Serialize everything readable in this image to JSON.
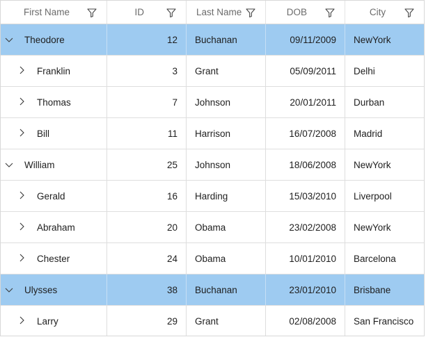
{
  "columns": {
    "first_name": "First Name",
    "id": "ID",
    "last_name": "Last Name",
    "dob": "DOB",
    "city": "City"
  },
  "rows": [
    {
      "first_name": "Theodore",
      "id": "12",
      "last_name": "Buchanan",
      "dob": "09/11/2009",
      "city": "NewYork",
      "level": 0,
      "expanded": true,
      "selected": true
    },
    {
      "first_name": "Franklin",
      "id": "3",
      "last_name": "Grant",
      "dob": "05/09/2011",
      "city": "Delhi",
      "level": 1,
      "expanded": false,
      "selected": false
    },
    {
      "first_name": "Thomas",
      "id": "7",
      "last_name": "Johnson",
      "dob": "20/01/2011",
      "city": "Durban",
      "level": 1,
      "expanded": false,
      "selected": false
    },
    {
      "first_name": "Bill",
      "id": "11",
      "last_name": "Harrison",
      "dob": "16/07/2008",
      "city": "Madrid",
      "level": 1,
      "expanded": false,
      "selected": false
    },
    {
      "first_name": "William",
      "id": "25",
      "last_name": "Johnson",
      "dob": "18/06/2008",
      "city": "NewYork",
      "level": 0,
      "expanded": true,
      "selected": false
    },
    {
      "first_name": "Gerald",
      "id": "16",
      "last_name": "Harding",
      "dob": "15/03/2010",
      "city": "Liverpool",
      "level": 1,
      "expanded": false,
      "selected": false
    },
    {
      "first_name": "Abraham",
      "id": "20",
      "last_name": "Obama",
      "dob": "23/02/2008",
      "city": "NewYork",
      "level": 1,
      "expanded": false,
      "selected": false
    },
    {
      "first_name": "Chester",
      "id": "24",
      "last_name": "Obama",
      "dob": "10/01/2010",
      "city": "Barcelona",
      "level": 1,
      "expanded": false,
      "selected": false
    },
    {
      "first_name": "Ulysses",
      "id": "38",
      "last_name": "Buchanan",
      "dob": "23/01/2010",
      "city": "Brisbane",
      "level": 0,
      "expanded": true,
      "selected": true
    },
    {
      "first_name": "Larry",
      "id": "29",
      "last_name": "Grant",
      "dob": "02/08/2008",
      "city": "San Francisco",
      "level": 1,
      "expanded": false,
      "selected": false
    }
  ],
  "icons": {
    "filter": "filter-icon",
    "expanded": "chevron-down-icon",
    "collapsed": "chevron-right-icon"
  },
  "colors": {
    "selected_row": "#9ecbf1",
    "header_text": "#6b6b6b",
    "grid_line": "#dedede"
  }
}
